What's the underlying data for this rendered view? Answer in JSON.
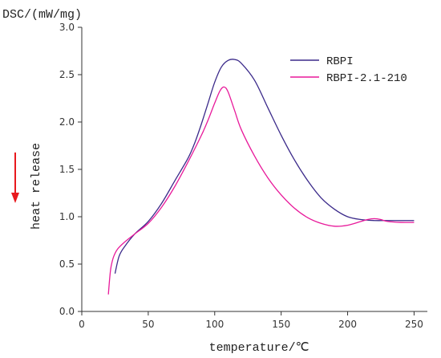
{
  "chart_data": {
    "type": "line",
    "title": "",
    "ylabel_top": "DSC/(mW/mg)",
    "ylabel_side": "heat release",
    "xlabel": "temperature/℃",
    "xlim": [
      0,
      260
    ],
    "ylim": [
      0,
      3.0
    ],
    "xticks": [
      0,
      50,
      100,
      150,
      200,
      250
    ],
    "yticks": [
      0.0,
      0.5,
      1.0,
      1.5,
      2.0,
      2.5,
      3.0
    ],
    "xtick_labels": [
      "0",
      "50",
      "100",
      "150",
      "200",
      "250"
    ],
    "ytick_labels": [
      "0.0",
      "0.5",
      "1.0",
      "1.5",
      "2.0",
      "2.5",
      "3.0"
    ],
    "grid": false,
    "legend_position": "top-right",
    "arrow_color": "#e8191e",
    "series": [
      {
        "name": "RBPI",
        "color": "#3b2a8a",
        "x": [
          25,
          28,
          32,
          40,
          50,
          60,
          70,
          80,
          85,
          90,
          95,
          100,
          105,
          110,
          115,
          120,
          130,
          140,
          150,
          160,
          170,
          180,
          190,
          200,
          210,
          220,
          230,
          240,
          250
        ],
        "y": [
          0.4,
          0.58,
          0.68,
          0.82,
          0.95,
          1.14,
          1.38,
          1.62,
          1.78,
          1.98,
          2.2,
          2.42,
          2.58,
          2.65,
          2.66,
          2.62,
          2.44,
          2.15,
          1.86,
          1.6,
          1.38,
          1.2,
          1.08,
          1.0,
          0.97,
          0.96,
          0.96,
          0.96,
          0.96
        ]
      },
      {
        "name": "RBPI-2.1-210",
        "color": "#e8199a",
        "x": [
          20,
          21,
          22,
          24,
          27,
          32,
          40,
          50,
          60,
          70,
          80,
          90,
          95,
          100,
          104,
          107,
          110,
          115,
          120,
          130,
          140,
          150,
          160,
          170,
          180,
          190,
          200,
          210,
          215,
          220,
          225,
          230,
          240,
          250
        ],
        "y": [
          0.18,
          0.35,
          0.47,
          0.58,
          0.66,
          0.73,
          0.82,
          0.93,
          1.1,
          1.32,
          1.58,
          1.86,
          2.02,
          2.2,
          2.33,
          2.37,
          2.32,
          2.12,
          1.92,
          1.64,
          1.41,
          1.23,
          1.09,
          0.99,
          0.93,
          0.9,
          0.91,
          0.95,
          0.97,
          0.98,
          0.97,
          0.95,
          0.94,
          0.94
        ]
      }
    ]
  }
}
